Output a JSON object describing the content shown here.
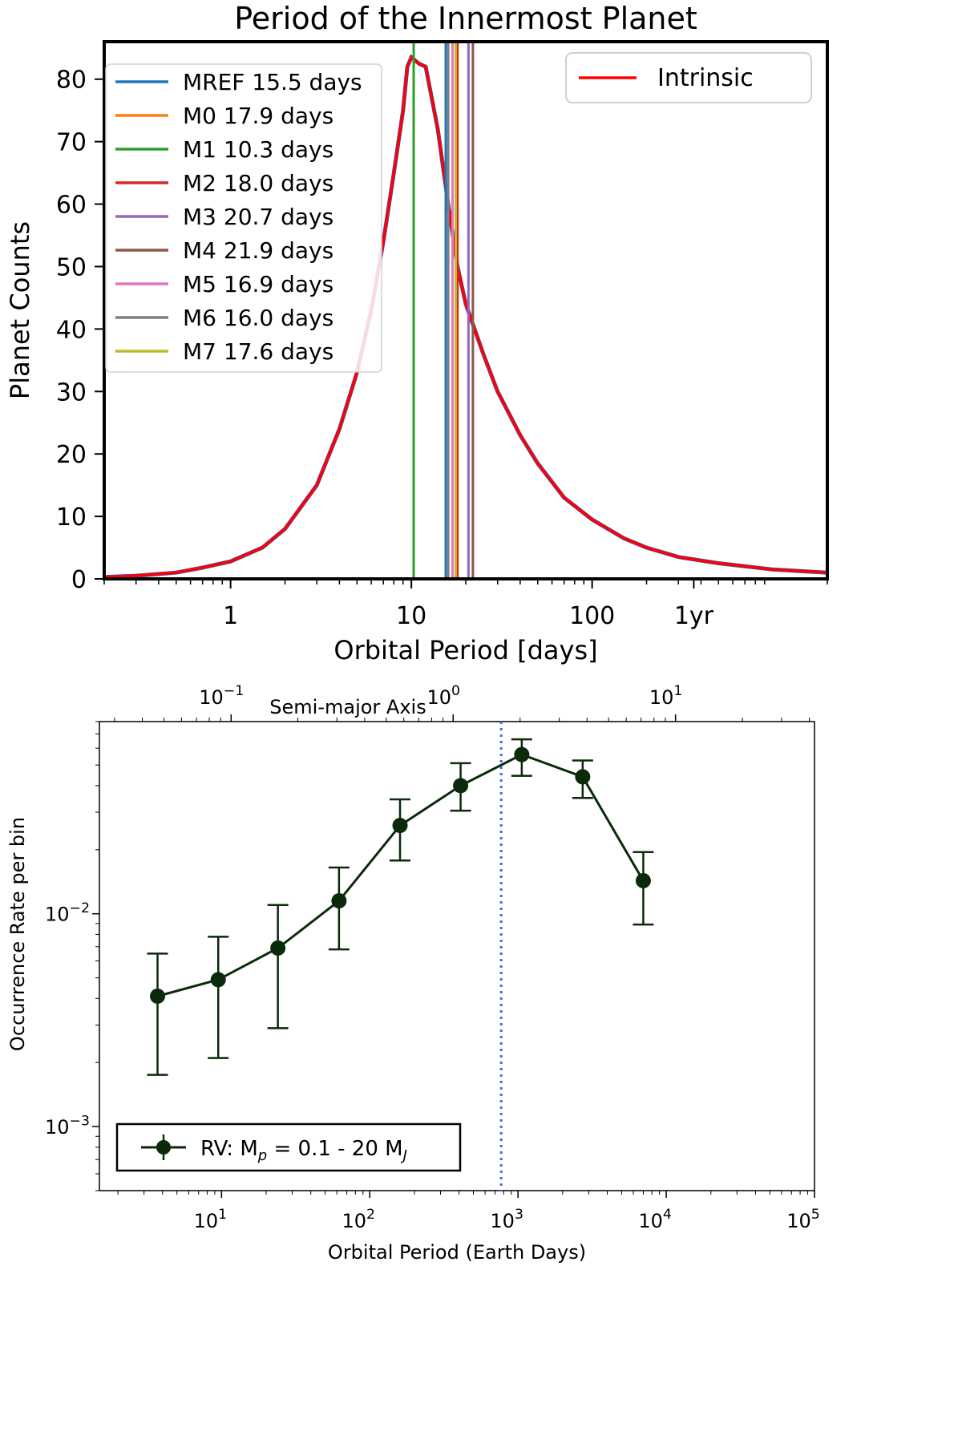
{
  "chart_data": [
    {
      "type": "line",
      "title": "Period of the Innermost Planet",
      "xlabel": "Orbital Period [days]",
      "ylabel": "Planet Counts",
      "xscale": "log",
      "xlim": [
        0.2,
        2000
      ],
      "ylim": [
        0,
        86
      ],
      "xticks": [
        {
          "value": 1,
          "label": "1"
        },
        {
          "value": 10,
          "label": "10"
        },
        {
          "value": 100,
          "label": "100"
        },
        {
          "value": 365,
          "label": "1yr"
        }
      ],
      "yticks": [
        0,
        10,
        20,
        30,
        40,
        50,
        60,
        70,
        80
      ],
      "series": [
        {
          "name": "Intrinsic",
          "color": "#ff0000",
          "x": [
            0.2,
            0.3,
            0.5,
            0.7,
            1.0,
            1.5,
            2.0,
            3.0,
            4.0,
            5.0,
            6.0,
            7.0,
            8.0,
            9.0,
            9.5,
            10.0,
            11.0,
            12.0,
            14.0,
            16.0,
            18.0,
            20.0,
            25.0,
            30.0,
            40.0,
            50.0,
            70.0,
            100.0,
            150.0,
            200.0,
            300.0,
            500.0,
            1000.0,
            2000.0
          ],
          "values": [
            0.3,
            0.5,
            1.0,
            1.8,
            2.8,
            5.0,
            8.0,
            15.0,
            24.0,
            33.0,
            43.0,
            54.0,
            65.0,
            75.0,
            82.0,
            83.5,
            82.5,
            82.0,
            72.0,
            60.0,
            50.0,
            44.0,
            36.0,
            30.0,
            23.0,
            18.5,
            13.0,
            9.5,
            6.5,
            5.0,
            3.5,
            2.5,
            1.5,
            1.0
          ]
        }
      ],
      "vlines": [
        {
          "name": "MREF 15.5 days",
          "x": 15.5,
          "color": "#1f77b4"
        },
        {
          "name": "M0 17.9 days",
          "x": 17.9,
          "color": "#ff7f0e"
        },
        {
          "name": "M1 10.3 days",
          "x": 10.3,
          "color": "#2ca02c"
        },
        {
          "name": "M2 18.0 days",
          "x": 18.0,
          "color": "#d62728"
        },
        {
          "name": "M3 20.7 days",
          "x": 20.7,
          "color": "#9467bd"
        },
        {
          "name": "M4 21.9 days",
          "x": 21.9,
          "color": "#8c564b"
        },
        {
          "name": "M5 16.9 days",
          "x": 16.9,
          "color": "#e377c2"
        },
        {
          "name": "M6 16.0 days",
          "x": 16.0,
          "color": "#7f7f7f"
        },
        {
          "name": "M7 17.6 days",
          "x": 17.6,
          "color": "#bcbd22"
        }
      ],
      "legends": {
        "vlines": "upper-left",
        "series": "upper-right"
      }
    },
    {
      "type": "line",
      "title": "",
      "xlabel": "Orbital Period (Earth Days)",
      "ylabel": "Occurrence Rate per bin",
      "xscale": "log",
      "yscale": "log",
      "xlim": [
        1.5,
        100000
      ],
      "ylim": [
        0.0005,
        0.08
      ],
      "xticks": [
        {
          "value": 10,
          "base": "10",
          "exp": "1"
        },
        {
          "value": 100,
          "base": "10",
          "exp": "2"
        },
        {
          "value": 1000,
          "base": "10",
          "exp": "3"
        },
        {
          "value": 10000,
          "base": "10",
          "exp": "4"
        },
        {
          "value": 100000,
          "base": "10",
          "exp": "5"
        }
      ],
      "yticks": [
        {
          "value": 0.001,
          "base": "10",
          "exp": "−3"
        },
        {
          "value": 0.01,
          "base": "10",
          "exp": "−2"
        }
      ],
      "top_axis": {
        "label": "Semi-major Axis",
        "ticks": [
          {
            "period": 11.6,
            "base": "10",
            "exp": "−1"
          },
          {
            "period": 365,
            "base": "10",
            "exp": "0"
          },
          {
            "period": 11550,
            "base": "10",
            "exp": "1"
          }
        ]
      },
      "series": [
        {
          "name": "RV",
          "legend": {
            "prefix": "RV: M",
            "sub": "p",
            "mid": " = 0.1 - 20 M",
            "sub2": "J"
          },
          "color": "#0a2a0a",
          "x": [
            3.7,
            9.5,
            24,
            62,
            160,
            410,
            1060,
            2730,
            7000
          ],
          "values": [
            0.0041,
            0.0049,
            0.0069,
            0.0115,
            0.026,
            0.04,
            0.056,
            0.044,
            0.0143
          ],
          "err_low": [
            0.00175,
            0.0021,
            0.0029,
            0.0068,
            0.0178,
            0.0305,
            0.0445,
            0.035,
            0.0089
          ],
          "err_high": [
            0.0065,
            0.0078,
            0.011,
            0.0165,
            0.0345,
            0.051,
            0.066,
            0.0525,
            0.0195
          ]
        }
      ],
      "reference_line": {
        "x": 770,
        "color": "#3a6fd8",
        "style": "dotted"
      },
      "legend_position": "lower-left"
    }
  ]
}
